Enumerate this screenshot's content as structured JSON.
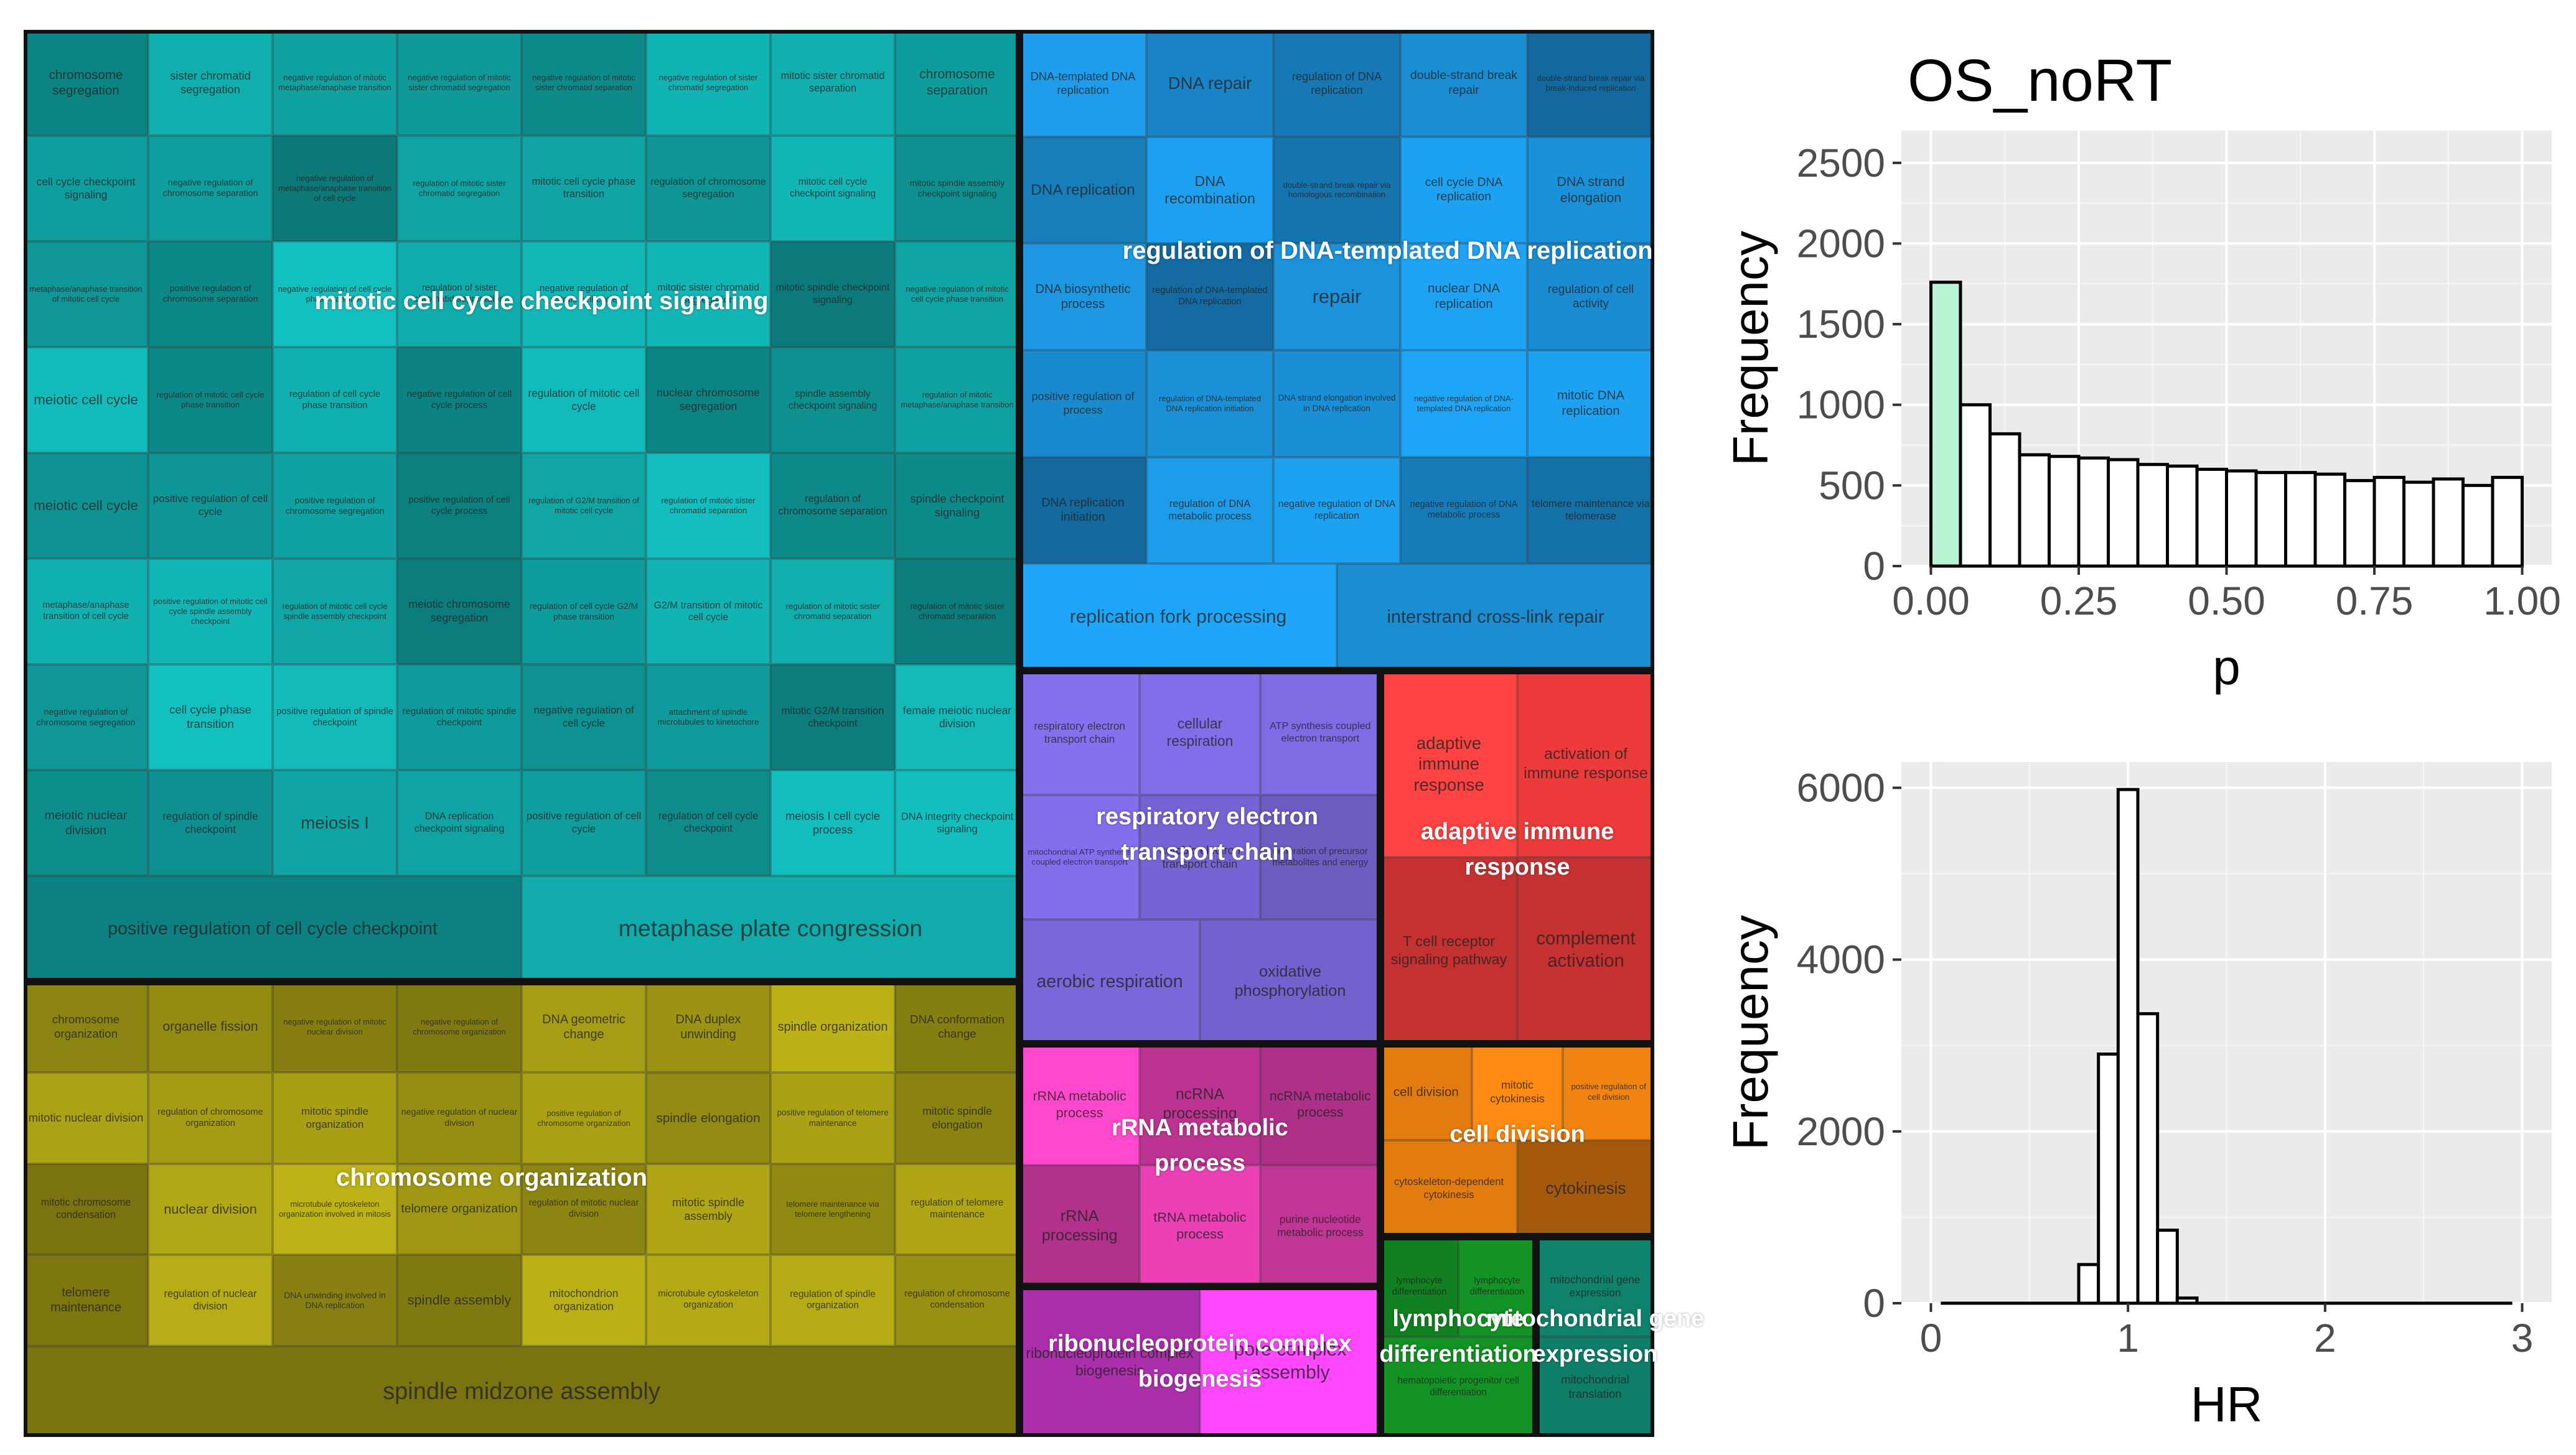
{
  "chart_data": [
    {
      "type": "treemap",
      "title": "",
      "groups": [
        {
          "name": "mitotic cell cycle checkpoint signaling",
          "color": "#10a5a5",
          "tiles": [
            "chromosome segregation",
            "sister chromatid segregation",
            "negative regulation of mitotic metaphase/anaphase transition",
            "negative regulation of mitotic sister chromatid segregation",
            "negative regulation of mitotic sister chromatid separation",
            "negative regulation of sister chromatid segregation",
            "mitotic sister chromatid separation",
            "chromosome separation",
            "cell cycle checkpoint signaling",
            "negative regulation of chromosome separation",
            "negative regulation of metaphase/anaphase transition of cell cycle",
            "regulation of mitotic sister chromatid segregation",
            "mitotic cell cycle phase transition",
            "regulation of chromosome segregation",
            "mitotic cell cycle checkpoint signaling",
            "mitotic spindle assembly checkpoint signaling",
            "metaphase/anaphase transition of mitotic cell cycle",
            "positive regulation of chromosome separation",
            "negative regulation of cell cycle phase transition",
            "regulation of sister chromatid segregation",
            "negative regulation of mitotic cell cycle",
            "mitotic sister chromatid segregation",
            "mitotic spindle checkpoint signaling",
            "negative regulation of mitotic cell cycle phase transition",
            "meiotic cell cycle",
            "regulation of mitotic cell cycle phase transition",
            "regulation of cell cycle phase transition",
            "negative regulation of cell cycle process",
            "regulation of mitotic cell cycle",
            "nuclear chromosome segregation",
            "spindle assembly checkpoint signaling",
            "regulation of mitotic metaphase/anaphase transition",
            "meiotic cell cycle",
            "positive regulation of cell cycle",
            "positive regulation of chromosome segregation",
            "positive regulation of cell cycle process",
            "regulation of G2/M transition of mitotic cell cycle",
            "regulation of mitotic sister chromatid separation",
            "regulation of chromosome separation",
            "spindle checkpoint signaling",
            "metaphase/anaphase transition of cell cycle",
            "positive regulation of mitotic cell cycle spindle assembly checkpoint",
            "regulation of mitotic cell cycle spindle assembly checkpoint",
            "meiotic chromosome segregation",
            "regulation of cell cycle G2/M phase transition",
            "G2/M transition of mitotic cell cycle",
            "regulation of mitotic sister chromatid separation",
            "regulation of mitotic sister chromatid separation",
            "negative regulation of chromosome segregation",
            "cell cycle phase transition",
            "positive regulation of spindle checkpoint",
            "regulation of mitotic spindle checkpoint",
            "negative regulation of cell cycle",
            "attachment of spindle microtubules to kinetochore",
            "mitotic G2/M transition checkpoint",
            "female meiotic nuclear division",
            "meiotic nuclear division",
            "regulation of spindle checkpoint",
            "meiosis I",
            "DNA replication checkpoint signaling",
            "positive regulation of cell cycle",
            "regulation of cell cycle checkpoint",
            "meiosis I cell cycle process",
            "DNA integrity checkpoint signaling",
            "positive regulation of cell cycle checkpoint",
            "metaphase plate congression"
          ]
        },
        {
          "name": "regulation of DNA-templated DNA replication",
          "color": "#1a8fd6",
          "tiles": [
            "DNA-templated DNA replication",
            "DNA repair",
            "regulation of DNA replication",
            "double-strand break repair",
            "double-strand break repair via break-induced replication",
            "DNA replication",
            "DNA recombination",
            "double-strand break repair via homologous recombination",
            "cell cycle DNA replication",
            "DNA strand elongation",
            "DNA biosynthetic process",
            "regulation of DNA-templated DNA replication",
            "repair",
            "nuclear DNA replication",
            "regulation of cell activity",
            "positive regulation of process",
            "regulation of DNA-templated DNA replication initiation",
            "DNA strand elongation involved in DNA replication",
            "negative regulation of DNA-templated DNA replication",
            "mitotic DNA replication",
            "DNA replication initiation",
            "regulation of DNA metabolic process",
            "negative regulation of DNA replication",
            "negative regulation of DNA metabolic process",
            "telomere maintenance via telomerase",
            "replication fork processing",
            "interstrand cross-link repair"
          ]
        },
        {
          "name": "respiratory electron transport chain",
          "color": "#7a66d9",
          "tiles": [
            "respiratory electron transport chain",
            "cellular respiration",
            "ATP synthesis coupled electron transport",
            "mitochondrial ATP synthesis coupled electron transport",
            "aerobic electron transport chain",
            "generation of precursor metabolites and energy",
            "aerobic respiration",
            "oxidative phosphorylation"
          ]
        },
        {
          "name": "adaptive immune response",
          "color": "#ef3b3b",
          "tiles": [
            "adaptive immune response",
            "activation of immune response",
            "T cell receptor signaling pathway",
            "complement activation"
          ]
        },
        {
          "name": "chromosome organization",
          "color": "#a39a14",
          "tiles": [
            "chromosome organization",
            "organelle fission",
            "negative regulation of mitotic nuclear division",
            "negative regulation of chromosome organization",
            "DNA geometric change",
            "DNA duplex unwinding",
            "spindle organization",
            "DNA conformation change",
            "mitotic nuclear division",
            "regulation of chromosome organization",
            "mitotic spindle organization",
            "negative regulation of nuclear division",
            "positive regulation of chromosome organization",
            "spindle elongation",
            "positive regulation of telomere maintenance",
            "mitotic spindle elongation",
            "mitotic chromosome condensation",
            "nuclear division",
            "microtubule cytoskeleton organization involved in mitosis",
            "telomere organization",
            "regulation of mitotic nuclear division",
            "mitotic spindle assembly",
            "telomere maintenance via telomere lengthening",
            "regulation of telomere maintenance",
            "telomere maintenance",
            "regulation of nuclear division",
            "DNA unwinding involved in DNA replication",
            "spindle assembly",
            "mitochondrion organization",
            "microtubule cytoskeleton organization",
            "regulation of spindle organization",
            "regulation of chromosome condensation",
            "spindle midzone assembly"
          ]
        },
        {
          "name": "rRNA metabolic process",
          "color": "#e63fb2",
          "tiles": [
            "rRNA metabolic process",
            "ncRNA processing",
            "ncRNA metabolic process",
            "rRNA processing",
            "tRNA metabolic process",
            "purine nucleotide metabolic process"
          ]
        },
        {
          "name": "ribonucleoprotein complex biogenesis",
          "color": "#e63fe6",
          "tiles": [
            "ribonucleoprotein complex biogenesis",
            "pore complex assembly"
          ]
        },
        {
          "name": "cell division",
          "color": "#e07a10",
          "tiles": [
            "cell division",
            "mitotic cytokinesis",
            "positive regulation of cell division",
            "cytoskeleton-dependent cytokinesis",
            "cytokinesis"
          ]
        },
        {
          "name": "lymphocyte differentiation",
          "color": "#16a82a",
          "tiles": [
            "lymphocyte differentiation",
            "lymphocyte differentiation",
            "hematopoietic progenitor cell differentiation"
          ]
        },
        {
          "name": "mitochondrial gene expression",
          "color": "#13a88a",
          "tiles": [
            "mitochondrial gene expression",
            "mitochondrial translation"
          ]
        }
      ]
    },
    {
      "type": "bar",
      "title": "OS_noRT",
      "xlabel": "p",
      "ylabel": "Frequency",
      "xlim": [
        -0.05,
        1.05
      ],
      "ylim": [
        0,
        2700
      ],
      "xticks": [
        "0.00",
        "0.25",
        "0.50",
        "0.75",
        "1.00"
      ],
      "yticks": [
        "0",
        "500",
        "1000",
        "1500",
        "2000",
        "2500"
      ],
      "bin_width": 0.05,
      "bin_starts": [
        0,
        0.05,
        0.1,
        0.15,
        0.2,
        0.25,
        0.3,
        0.35,
        0.4,
        0.45,
        0.5,
        0.55,
        0.6,
        0.65,
        0.7,
        0.75,
        0.8,
        0.85,
        0.9,
        0.95
      ],
      "values": [
        1760,
        1000,
        820,
        690,
        680,
        670,
        660,
        630,
        620,
        600,
        590,
        580,
        580,
        570,
        530,
        550,
        520,
        540,
        500,
        550
      ],
      "highlight_color": "#b9f3d3"
    },
    {
      "type": "bar",
      "title": "",
      "xlabel": "HR",
      "ylabel": "Frequency",
      "xlim": [
        -0.15,
        3.15
      ],
      "ylim": [
        0,
        6300
      ],
      "xticks": [
        "0",
        "1",
        "2",
        "3"
      ],
      "yticks": [
        "0",
        "2000",
        "4000",
        "6000"
      ],
      "bin_width": 0.1,
      "bin_starts": [
        0.75,
        0.85,
        0.95,
        1.05,
        1.15,
        1.25
      ],
      "values": [
        450,
        2900,
        5980,
        3370,
        850,
        60
      ],
      "baseline_range": [
        0.05,
        2.95
      ]
    }
  ]
}
